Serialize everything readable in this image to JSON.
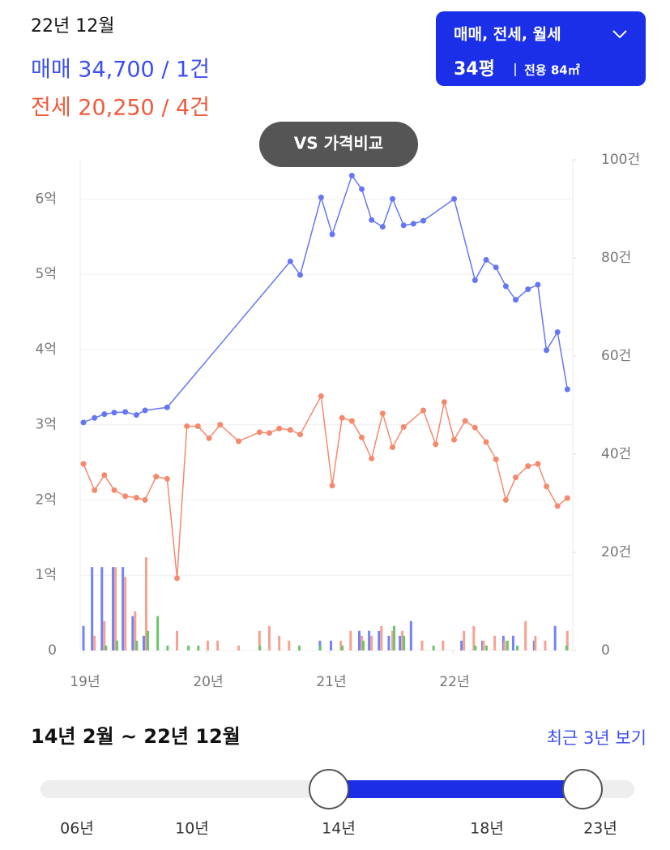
{
  "header": {
    "period": "22년 12월",
    "sale": "매매 34,700 / 1건",
    "jeonse": "전세 20,250 / 4건"
  },
  "filter": {
    "types": "매매, 전세, 월세",
    "size": "34평",
    "area": "전용 84㎡"
  },
  "compare_button": "VS 가격비교",
  "chart_data": {
    "type": "line",
    "xlim": [
      2019,
      2023
    ],
    "xticks": [
      {
        "value": 2019,
        "label": "19년"
      },
      {
        "value": 2020,
        "label": "20년"
      },
      {
        "value": 2021,
        "label": "21년"
      },
      {
        "value": 2022,
        "label": "22년"
      }
    ],
    "ylim": [
      0,
      6.52
    ],
    "yticks": [
      0,
      {
        "value": 1,
        "label": "1억"
      },
      {
        "value": 2,
        "label": "2억"
      },
      {
        "value": 3,
        "label": "3억"
      },
      {
        "value": 4,
        "label": "4억"
      },
      {
        "value": 5,
        "label": "5억"
      },
      {
        "value": 6,
        "label": "6억"
      }
    ],
    "y2lim": [
      0,
      100
    ],
    "y2ticks": [
      0,
      {
        "value": 20,
        "label": "20건"
      },
      {
        "value": 40,
        "label": "40건"
      },
      {
        "value": 60,
        "label": "60건"
      },
      {
        "value": 80,
        "label": "80건"
      },
      {
        "value": 100,
        "label": "100건"
      }
    ],
    "grid": true,
    "series": [
      {
        "type": "bar",
        "axis": "y2",
        "color": "#7383f7",
        "x": [
          2019.0,
          2019.07,
          2019.15,
          2019.24,
          2019.32,
          2019.4,
          2019.49,
          2020.92,
          2021.01,
          2021.24,
          2021.32,
          2021.4,
          2021.48,
          2021.57,
          2021.66,
          2022.07,
          2022.24,
          2022.41,
          2022.49,
          2022.66,
          2022.83
        ],
        "values": [
          5,
          17,
          17,
          17,
          17,
          7,
          3,
          2,
          2,
          4,
          4,
          4,
          3,
          3,
          6,
          2,
          2,
          3,
          3,
          2,
          5
        ]
      },
      {
        "type": "bar",
        "axis": "y2",
        "color": "#f7a291",
        "x": [
          2019.07,
          2019.15,
          2019.24,
          2019.32,
          2019.4,
          2019.49,
          2019.74,
          2019.99,
          2020.07,
          2020.24,
          2020.41,
          2020.49,
          2020.57,
          2020.65,
          2021.07,
          2021.15,
          2021.24,
          2021.32,
          2021.4,
          2021.49,
          2021.57,
          2021.73,
          2021.9,
          2022.07,
          2022.15,
          2022.23,
          2022.32,
          2022.4,
          2022.57,
          2022.65,
          2022.73,
          2022.91
        ],
        "values": [
          3,
          6,
          17,
          15,
          8,
          19,
          4,
          2,
          2,
          1,
          4,
          5,
          3,
          2,
          2,
          4,
          3,
          3,
          5,
          4,
          4,
          2,
          2,
          4,
          5,
          2,
          3,
          2,
          6,
          3,
          2,
          4
        ]
      },
      {
        "type": "bar",
        "axis": "y2",
        "color": "#6cc46c",
        "x": [
          2019.15,
          2019.24,
          2019.4,
          2019.49,
          2019.57,
          2019.65,
          2019.82,
          2019.9,
          2020.4,
          2020.72,
          2020.89,
          2021.07,
          2021.24,
          2021.49,
          2021.57,
          2021.81,
          2022.15,
          2022.24,
          2022.41,
          2022.49,
          2022.89
        ],
        "values": [
          1,
          2,
          2,
          4,
          7,
          1,
          1,
          1,
          1,
          1,
          1,
          1,
          2,
          5,
          3,
          1,
          1,
          1,
          2,
          1,
          1
        ]
      },
      {
        "type": "line",
        "color": "#6577f5",
        "x": [
          2019.0,
          2019.09,
          2019.17,
          2019.25,
          2019.34,
          2019.43,
          2019.5,
          2019.68,
          2020.68,
          2020.76,
          2020.93,
          2021.02,
          2021.18,
          2021.26,
          2021.34,
          2021.43,
          2021.51,
          2021.6,
          2021.68,
          2021.76,
          2022.01,
          2022.18,
          2022.27,
          2022.35,
          2022.43,
          2022.51,
          2022.61,
          2022.69,
          2022.76,
          2022.85,
          2022.93
        ],
        "values": [
          3.03,
          3.09,
          3.14,
          3.16,
          3.17,
          3.13,
          3.19,
          3.23,
          5.17,
          4.99,
          6.02,
          5.53,
          6.31,
          6.13,
          5.72,
          5.63,
          6.0,
          5.65,
          5.67,
          5.71,
          6.0,
          4.92,
          5.19,
          5.09,
          4.84,
          4.66,
          4.8,
          4.86,
          3.99,
          4.23,
          3.47
        ]
      },
      {
        "type": "line",
        "color": "#f5896c",
        "x": [
          2019.0,
          2019.09,
          2019.17,
          2019.25,
          2019.34,
          2019.43,
          2019.5,
          2019.59,
          2019.68,
          2019.76,
          2019.84,
          2019.93,
          2020.02,
          2020.11,
          2020.26,
          2020.43,
          2020.51,
          2020.59,
          2020.68,
          2020.76,
          2020.93,
          2021.02,
          2021.1,
          2021.18,
          2021.26,
          2021.34,
          2021.43,
          2021.51,
          2021.6,
          2021.76,
          2021.86,
          2021.93,
          2022.01,
          2022.1,
          2022.18,
          2022.27,
          2022.35,
          2022.43,
          2022.51,
          2022.61,
          2022.69,
          2022.76,
          2022.85,
          2022.93
        ],
        "values": [
          2.48,
          2.13,
          2.33,
          2.13,
          2.05,
          2.03,
          2.0,
          2.31,
          2.28,
          0.96,
          2.98,
          2.98,
          2.82,
          3.0,
          2.78,
          2.9,
          2.89,
          2.95,
          2.93,
          2.87,
          3.38,
          2.19,
          3.09,
          3.05,
          2.83,
          2.55,
          3.15,
          2.7,
          2.97,
          3.19,
          2.74,
          3.3,
          2.8,
          3.05,
          2.96,
          2.77,
          2.54,
          2.0,
          2.3,
          2.45,
          2.48,
          2.18,
          1.92,
          2.025
        ]
      }
    ]
  },
  "range": {
    "label": "14년 2월 ~ 22년 12월",
    "recent_link": "최근 3년 보기",
    "ticks": [
      "06년",
      "10년",
      "14년",
      "18년",
      "23년"
    ]
  }
}
